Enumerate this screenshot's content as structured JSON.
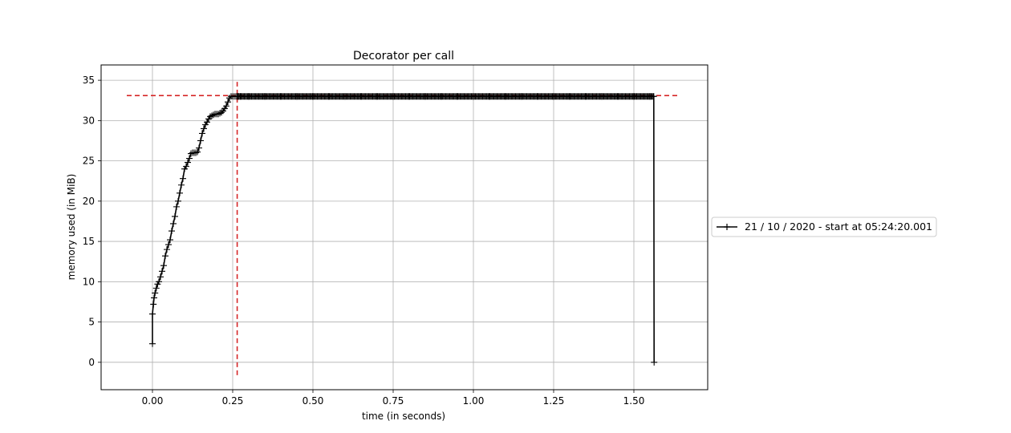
{
  "chart_data": {
    "type": "line",
    "title": "Decorator per call",
    "xlabel": "time (in seconds)",
    "ylabel": "memory used (in MiB)",
    "xlim": [
      -0.16,
      1.73
    ],
    "ylim": [
      -3.4,
      36.9
    ],
    "grid": true,
    "legend_position": "right, outside plot",
    "x_ticks": [
      0.0,
      0.25,
      0.5,
      0.75,
      1.0,
      1.25,
      1.5
    ],
    "x_tick_labels": [
      "0.00",
      "0.25",
      "0.50",
      "0.75",
      "1.00",
      "1.25",
      "1.50"
    ],
    "y_ticks": [
      0,
      5,
      10,
      15,
      20,
      25,
      30,
      35
    ],
    "y_tick_labels": [
      "0",
      "5",
      "10",
      "15",
      "20",
      "25",
      "30",
      "35"
    ],
    "series": [
      {
        "name": "21 / 10 / 2020 - start at 05:24:20.001",
        "color": "#000000",
        "marker": "+",
        "x": [
          0.0,
          0.0,
          0.003,
          0.005,
          0.008,
          0.012,
          0.016,
          0.02,
          0.025,
          0.03,
          0.035,
          0.04,
          0.045,
          0.05,
          0.055,
          0.06,
          0.065,
          0.07,
          0.075,
          0.08,
          0.085,
          0.09,
          0.095,
          0.1,
          0.105,
          0.11,
          0.115,
          0.12,
          0.125,
          0.13,
          0.135,
          0.14,
          0.145,
          0.15,
          0.155,
          0.16,
          0.165,
          0.17,
          0.175,
          0.18,
          0.185,
          0.19,
          0.195,
          0.2,
          0.205,
          0.21,
          0.215,
          0.22,
          0.225,
          0.23,
          0.235,
          0.24,
          0.245,
          0.25,
          0.255,
          0.26,
          0.264,
          0.268,
          0.275,
          0.3,
          0.35,
          0.4,
          0.45,
          0.5,
          0.55,
          0.6,
          0.65,
          0.7,
          0.75,
          0.8,
          0.85,
          0.9,
          0.95,
          1.0,
          1.05,
          1.1,
          1.15,
          1.2,
          1.25,
          1.3,
          1.35,
          1.4,
          1.45,
          1.5,
          1.55,
          1.562,
          1.563
        ],
        "y": [
          2.3,
          6.0,
          7.2,
          8.0,
          8.6,
          9.2,
          9.7,
          10.0,
          10.6,
          11.3,
          12.0,
          13.2,
          14.0,
          14.6,
          15.2,
          16.3,
          17.2,
          18.1,
          19.3,
          20.0,
          21.0,
          22.0,
          22.8,
          24.0,
          24.3,
          24.8,
          25.3,
          25.9,
          26.0,
          26.0,
          26.0,
          26.1,
          26.6,
          27.5,
          28.4,
          29.0,
          29.5,
          29.8,
          30.2,
          30.5,
          30.6,
          30.7,
          30.8,
          30.8,
          30.8,
          30.9,
          31.0,
          31.2,
          31.5,
          31.8,
          32.3,
          32.8,
          33.0,
          33.0,
          33.0,
          33.0,
          33.0,
          33.0,
          33.0,
          33.0,
          33.0,
          33.0,
          33.0,
          33.0,
          33.0,
          33.0,
          33.0,
          33.0,
          33.0,
          33.0,
          33.0,
          33.0,
          33.0,
          33.0,
          33.0,
          33.0,
          33.0,
          33.0,
          33.0,
          33.0,
          33.0,
          33.0,
          33.0,
          33.0,
          33.0,
          33.0,
          0.0
        ],
        "dense_marker_x_range": [
          0.264,
          1.563
        ]
      }
    ],
    "reference_lines": [
      {
        "orientation": "horizontal",
        "value": 33.1,
        "from": -0.08,
        "to": 1.64,
        "color": "#d62728",
        "style": "dashed"
      },
      {
        "orientation": "vertical",
        "value": 0.264,
        "from": -1.6,
        "to": 34.8,
        "color": "#d62728",
        "style": "dashed"
      }
    ]
  }
}
